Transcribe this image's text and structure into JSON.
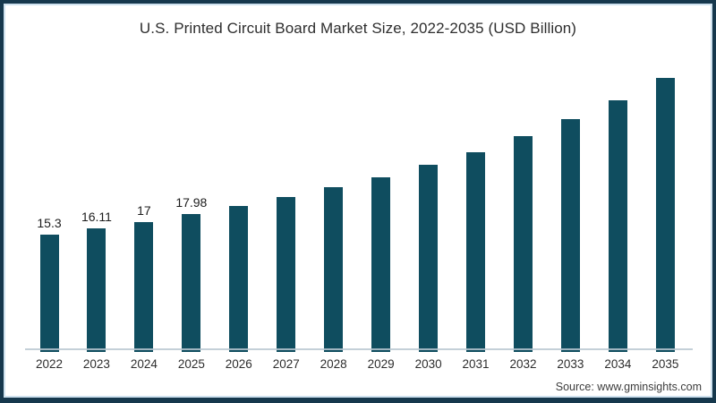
{
  "title": "U.S. Printed Circuit Board Market Size, 2022-2035 (USD Billion)",
  "source": "Source: www.gminsights.com",
  "colors": {
    "bar": "#0f4d5f",
    "frame_border": "#16384d",
    "frame_inner_line": "#cfe2ef",
    "axis_line": "#bac8d1",
    "title_text": "#2e2e2e"
  },
  "chart_data": {
    "type": "bar",
    "title": "U.S. Printed Circuit Board Market Size, 2022-2035 (USD Billion)",
    "xlabel": "",
    "ylabel": "",
    "categories": [
      "2022",
      "2023",
      "2024",
      "2025",
      "2026",
      "2027",
      "2028",
      "2029",
      "2030",
      "2031",
      "2032",
      "2033",
      "2034",
      "2035"
    ],
    "values": [
      15.3,
      16.11,
      17,
      17.98,
      19.1,
      20.2,
      21.5,
      22.9,
      24.5,
      26.2,
      28.3,
      30.5,
      33.0,
      35.9
    ],
    "data_labels": [
      "15.3",
      "16.11",
      "17",
      "17.98",
      "",
      "",
      "",
      "",
      "",
      "",
      "",
      "",
      "",
      ""
    ],
    "ylim": [
      0,
      40
    ],
    "grid": false,
    "legend": false,
    "bar_color": "#0f4d5f",
    "source": "Source: www.gminsights.com"
  }
}
